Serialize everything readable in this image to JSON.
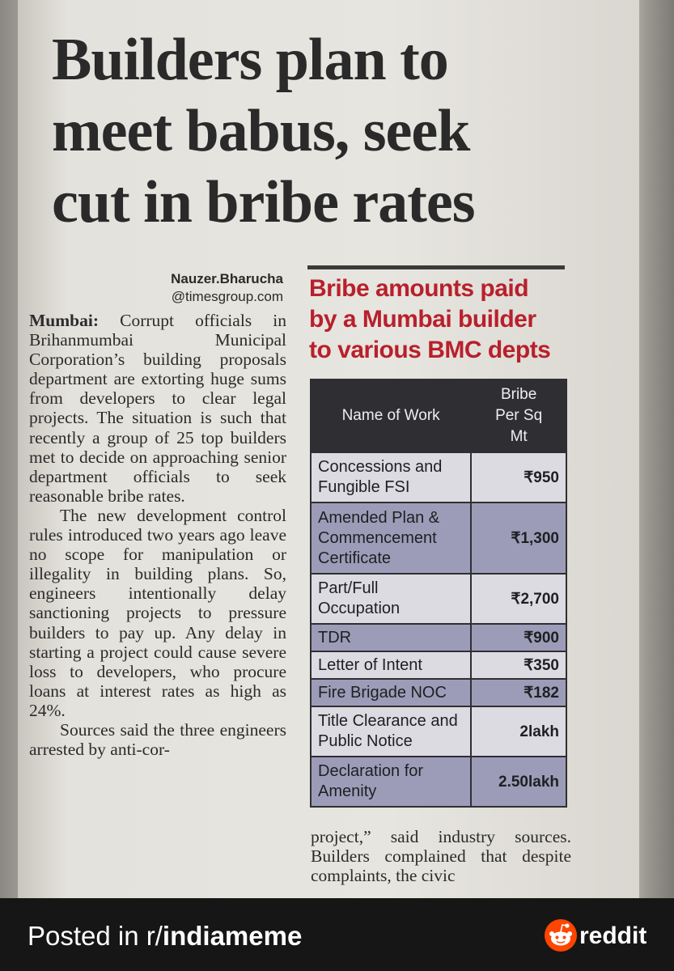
{
  "article": {
    "headline_lines": [
      "Builders plan to",
      "meet babus, seek",
      "cut in bribe rates"
    ],
    "byline_name": "Nauzer.Bharucha",
    "byline_handle": "@timesgroup.com",
    "dateline": "Mumbai:",
    "para1": "Corrupt officials in Brihanmumbai Municipal Corporation’s building proposals department are extorting huge sums from developers to clear legal projects. The situation is such that recently a group of 25 top builders met to decide on approaching senior department officials to seek reasonable bribe rates.",
    "para2": "The new development control rules introduced two years ago leave no scope for manipulation or illegality in building plans. So, engineers intentionally delay sanctioning projects to pressure builders to pay up. Any delay in starting a project could cause severe loss to developers, who procure loans at interest rates as high as 24%.",
    "para3": "Sources said the three engineers arrested by anti-cor-",
    "right_continuation": "project,” said industry sources. Builders complained that despite complaints, the civic"
  },
  "box": {
    "title_lines": [
      "Bribe amounts paid",
      "by a Mumbai builder",
      "to various BMC depts"
    ],
    "header_work": "Name of Work",
    "header_amount_lines": [
      "Bribe",
      "Per Sq",
      "Mt"
    ],
    "rows": [
      {
        "work": "Concessions and Fungible FSI",
        "amount": "₹950"
      },
      {
        "work": "Amended Plan & Commencement Certificate",
        "amount": "₹1,300"
      },
      {
        "work": "Part/Full Occupation",
        "amount": "₹2,700"
      },
      {
        "work": "TDR",
        "amount": "₹900"
      },
      {
        "work": "Letter of Intent",
        "amount": "₹350"
      },
      {
        "work": "Fire Brigade NOC",
        "amount": "₹182"
      },
      {
        "work": "Title Clearance and Public Notice",
        "amount": "2lakh"
      },
      {
        "work": "Declaration for Amenity",
        "amount": "2.50lakh"
      }
    ]
  },
  "footer": {
    "posted_in": "Posted in r/",
    "subreddit": "indiameme",
    "brand": "reddit",
    "colors": {
      "logo": "#ff4500",
      "background": "#161616"
    }
  },
  "colors": {
    "box_title": "#b8202c",
    "table_header": "#2f2f33",
    "row_light": "#dcdbe2",
    "row_dark": "#9d9cb8"
  }
}
